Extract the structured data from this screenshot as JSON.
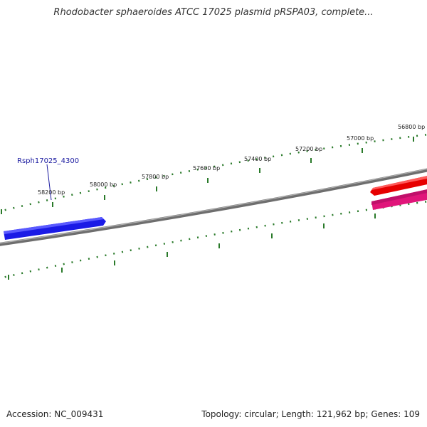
{
  "title": "Rhodobacter sphaeroides ATCC 17025 plasmid pRSPA03, complete...",
  "footer": {
    "accession": "Accession: NC_009431",
    "summary": "Topology: circular; Length: 121,962 bp; Genes: 109"
  },
  "ticks": [
    "58200 bp",
    "58000 bp",
    "57800 bp",
    "57600 bp",
    "57400 bp",
    "57200 bp",
    "57000 bp",
    "56800 bp"
  ],
  "gene_label": "Rsph17025_4300",
  "colors": {
    "backbone": "#7a7a7a",
    "tick": "#2a7a2a",
    "gene_blue": "#1a1ae6",
    "gene_red": "#e60000",
    "gene_pink": "#e0157a",
    "label": "#1a1aa0"
  }
}
